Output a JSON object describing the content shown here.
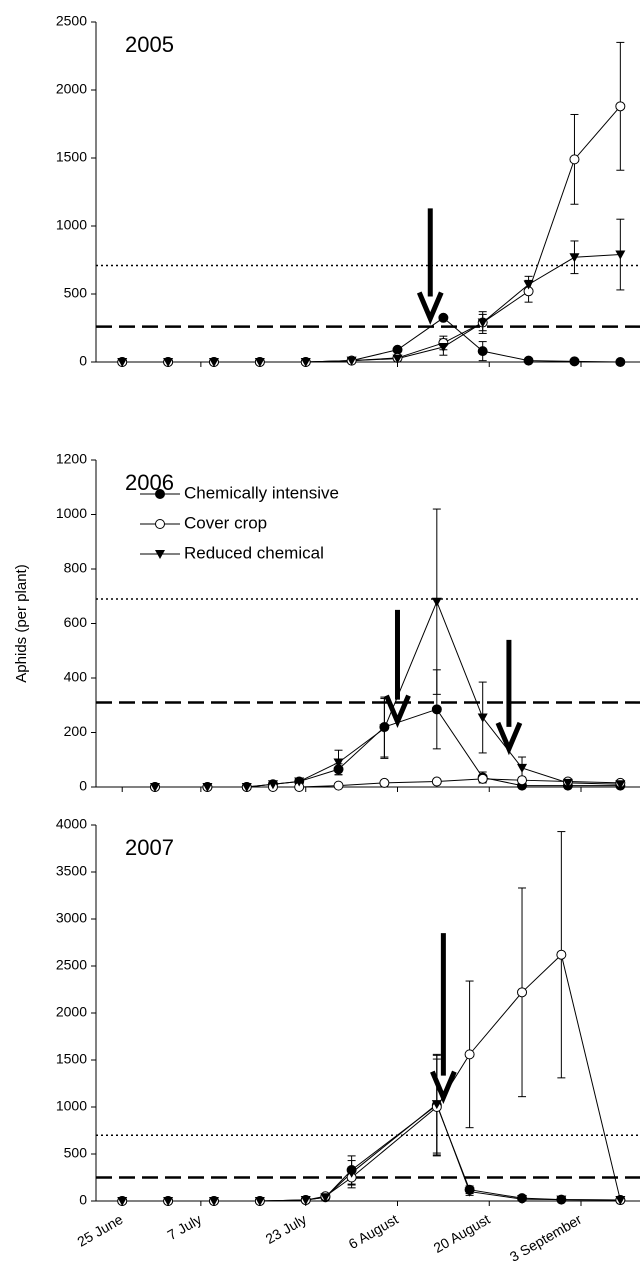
{
  "chart_data": [
    {
      "type": "line",
      "title": "2005",
      "x": [
        "2005-06-25",
        "2005-07-02",
        "2005-07-09",
        "2005-07-16",
        "2005-07-23",
        "2005-07-30",
        "2005-08-06",
        "2005-08-13",
        "2005-08-19",
        "2005-08-26",
        "2005-09-02",
        "2005-09-09"
      ],
      "series": [
        {
          "marker": "filled-circle",
          "color": "#000000",
          "values": [
            0,
            0,
            0,
            0,
            0,
            10,
            90,
            325,
            80,
            10,
            5,
            0
          ],
          "errors": [
            0,
            0,
            0,
            0,
            0,
            5,
            15,
            15,
            70,
            5,
            5,
            0
          ]
        },
        {
          "marker": "open-circle",
          "color": "#000000",
          "values": [
            0,
            0,
            0,
            0,
            0,
            10,
            30,
            140,
            290,
            520,
            1490,
            1880
          ],
          "errors": [
            0,
            0,
            0,
            0,
            0,
            5,
            10,
            50,
            60,
            80,
            330,
            470
          ]
        },
        {
          "marker": "triangle-down",
          "color": "#000000",
          "values": [
            0,
            0,
            0,
            0,
            0,
            10,
            25,
            110,
            290,
            570,
            770,
            790
          ],
          "errors": [
            0,
            0,
            0,
            0,
            0,
            5,
            10,
            60,
            80,
            60,
            120,
            260
          ]
        }
      ],
      "xlim": [
        "2005-06-21",
        "2005-09-12"
      ],
      "xticks": [
        "2005-06-25",
        "2005-07-07",
        "2005-07-23",
        "2005-08-06",
        "2005-08-20",
        "2005-09-03"
      ],
      "ylim": [
        0,
        2500
      ],
      "yticks": [
        0,
        500,
        1000,
        1500,
        2000,
        2500
      ],
      "reference_lines": [
        {
          "value": 710,
          "style": "dotted"
        },
        {
          "value": 260,
          "style": "dashed"
        }
      ],
      "arrows": [
        {
          "x": "2005-08-11",
          "y": [
            1130,
            320
          ]
        }
      ]
    },
    {
      "type": "line",
      "title": "2006",
      "ylabel": "Aphids (per plant)",
      "x": [
        "2006-06-30",
        "2006-07-08",
        "2006-07-14",
        "2006-07-18",
        "2006-07-22",
        "2006-07-28",
        "2006-08-04",
        "2006-08-12",
        "2006-08-19",
        "2006-08-25",
        "2006-09-01",
        "2006-09-09"
      ],
      "series": [
        {
          "name": "Chemically intensive",
          "marker": "filled-circle",
          "color": "#000000",
          "values": [
            0,
            0,
            0,
            10,
            20,
            65,
            220,
            285,
            35,
            5,
            5,
            5
          ],
          "errors": [
            0,
            0,
            0,
            5,
            5,
            20,
            110,
            145,
            20,
            5,
            5,
            5
          ]
        },
        {
          "name": "Cover crop",
          "marker": "open-circle",
          "color": "#000000",
          "values": [
            0,
            0,
            0,
            0,
            0,
            5,
            15,
            20,
            30,
            25,
            20,
            15
          ],
          "errors": [
            0,
            0,
            0,
            0,
            0,
            3,
            5,
            8,
            10,
            10,
            5,
            5
          ]
        },
        {
          "name": "Reduced chemical",
          "marker": "triangle-down",
          "color": "#000000",
          "values": [
            0,
            0,
            0,
            10,
            20,
            90,
            215,
            680,
            255,
            70,
            15,
            10
          ],
          "errors": [
            0,
            0,
            0,
            5,
            10,
            45,
            110,
            340,
            130,
            40,
            10,
            5
          ]
        }
      ],
      "xlim": [
        "2006-06-21",
        "2006-09-12"
      ],
      "xticks": [
        "2006-06-25",
        "2006-07-07",
        "2006-07-23",
        "2006-08-06",
        "2006-08-20",
        "2006-09-03"
      ],
      "ylim": [
        0,
        1200
      ],
      "yticks": [
        0,
        200,
        400,
        600,
        800,
        1000,
        1200
      ],
      "reference_lines": [
        {
          "value": 690,
          "style": "dotted"
        },
        {
          "value": 310,
          "style": "dashed"
        }
      ],
      "arrows": [
        {
          "x": "2006-08-06",
          "y": [
            650,
            240
          ]
        },
        {
          "x": "2006-08-23",
          "y": [
            540,
            140
          ]
        }
      ],
      "legend": "upper left"
    },
    {
      "type": "line",
      "title": "2007",
      "x": [
        "2007-06-25",
        "2007-07-02",
        "2007-07-09",
        "2007-07-16",
        "2007-07-23",
        "2007-07-26",
        "2007-07-30",
        "2007-08-12",
        "2007-08-17",
        "2007-08-25",
        "2007-08-31",
        "2007-09-09"
      ],
      "series": [
        {
          "marker": "filled-circle",
          "color": "#000000",
          "values": [
            0,
            0,
            0,
            0,
            10,
            40,
            330,
            1020,
            120,
            30,
            15,
            10
          ],
          "errors": [
            0,
            0,
            0,
            0,
            5,
            10,
            150,
            540,
            40,
            10,
            5,
            5
          ]
        },
        {
          "marker": "open-circle",
          "color": "#000000",
          "values": [
            0,
            0,
            0,
            0,
            10,
            50,
            250,
            1000,
            1560,
            2220,
            2620,
            10
          ],
          "errors": [
            0,
            0,
            0,
            0,
            5,
            10,
            110,
            510,
            780,
            1110,
            1310,
            5
          ]
        },
        {
          "marker": "triangle-down",
          "color": "#000000",
          "values": [
            0,
            0,
            0,
            0,
            10,
            40,
            300,
            1030,
            100,
            20,
            15,
            10
          ],
          "errors": [
            0,
            0,
            0,
            0,
            5,
            10,
            130,
            520,
            40,
            10,
            5,
            5
          ]
        }
      ],
      "xlim": [
        "2007-06-21",
        "2007-09-12"
      ],
      "xticks": [
        {
          "value": "2007-06-25",
          "label": "25 June"
        },
        {
          "value": "2007-07-07",
          "label": "7 July"
        },
        {
          "value": "2007-07-23",
          "label": "23 July"
        },
        {
          "value": "2007-08-06",
          "label": "6 August"
        },
        {
          "value": "2007-08-20",
          "label": "20 August"
        },
        {
          "value": "2007-09-03",
          "label": "3 September"
        }
      ],
      "ylim": [
        0,
        4000
      ],
      "yticks": [
        0,
        500,
        1000,
        1500,
        2000,
        2500,
        3000,
        3500,
        4000
      ],
      "reference_lines": [
        {
          "value": 700,
          "style": "dotted"
        },
        {
          "value": 250,
          "style": "dashed"
        }
      ],
      "arrows": [
        {
          "x": "2007-08-13",
          "y": [
            2850,
            1100
          ]
        }
      ]
    }
  ]
}
